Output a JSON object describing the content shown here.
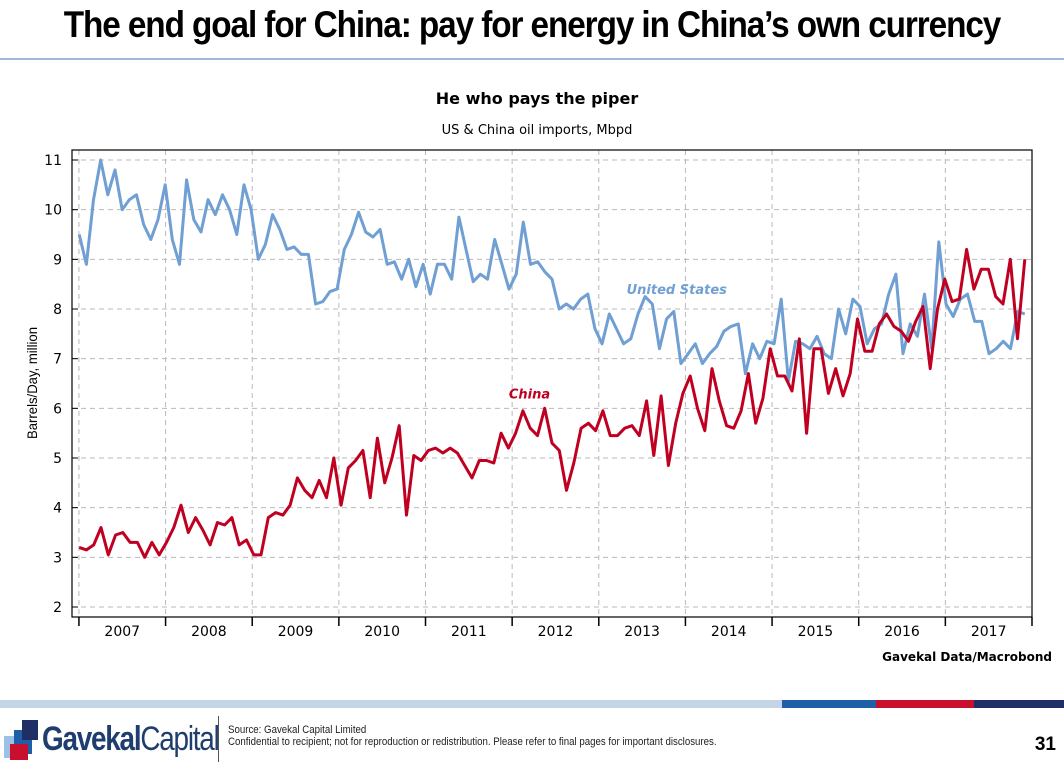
{
  "slide_title": "The end goal for China: pay for energy in China’s own currency",
  "chart_data": {
    "type": "line",
    "title": "He who pays the piper",
    "subtitle": "US & China oil imports, Mbpd",
    "ylabel": "Barrels/Day, million",
    "xlabel": "",
    "ylim": [
      2,
      11
    ],
    "yticks": [
      "2",
      "3",
      "4",
      "5",
      "6",
      "7",
      "8",
      "9",
      "10",
      "11"
    ],
    "x_start_year": 2006.92,
    "x_end_year": 2018.0,
    "year_labels": [
      "2007",
      "2008",
      "2009",
      "2010",
      "2011",
      "2012",
      "2013",
      "2014",
      "2015",
      "2016",
      "2017"
    ],
    "grid": true,
    "source_note": "Gavekal Data/Macrobond",
    "series": [
      {
        "name": "United States",
        "color": "#6f9fd3",
        "values": [
          9.5,
          8.9,
          10.2,
          11.0,
          10.3,
          10.8,
          10.0,
          10.2,
          10.3,
          9.7,
          9.4,
          9.8,
          10.5,
          9.4,
          8.9,
          10.6,
          9.8,
          9.55,
          10.2,
          9.9,
          10.3,
          10.0,
          9.5,
          10.5,
          10.0,
          9.0,
          9.3,
          9.9,
          9.6,
          9.2,
          9.25,
          9.1,
          9.1,
          8.1,
          8.15,
          8.35,
          8.4,
          9.2,
          9.5,
          9.95,
          9.55,
          9.45,
          9.6,
          8.9,
          8.95,
          8.6,
          9.0,
          8.45,
          8.9,
          8.3,
          8.9,
          8.9,
          8.6,
          9.85,
          9.2,
          8.55,
          8.7,
          8.6,
          9.4,
          8.9,
          8.4,
          8.7,
          9.75,
          8.9,
          8.95,
          8.75,
          8.6,
          8.0,
          8.1,
          8.0,
          8.2,
          8.3,
          7.6,
          7.3,
          7.9,
          7.6,
          7.3,
          7.4,
          7.9,
          8.25,
          8.1,
          7.2,
          7.8,
          7.95,
          6.9,
          7.1,
          7.3,
          6.9,
          7.1,
          7.25,
          7.55,
          7.65,
          7.7,
          6.7,
          7.3,
          7.0,
          7.35,
          7.3,
          8.2,
          6.55,
          7.35,
          7.3,
          7.2,
          7.45,
          7.1,
          7.0,
          8.0,
          7.5,
          8.2,
          8.05,
          7.3,
          7.6,
          7.7,
          8.3,
          8.7,
          7.1,
          7.7,
          7.45,
          8.3,
          7.2,
          9.35,
          8.1,
          7.85,
          8.2,
          8.3,
          7.75,
          7.75,
          7.1,
          7.2,
          7.35,
          7.2,
          7.95,
          7.9
        ]
      },
      {
        "name": "China",
        "color": "#c00020",
        "values": [
          3.2,
          3.15,
          3.25,
          3.6,
          3.05,
          3.45,
          3.5,
          3.3,
          3.3,
          3.0,
          3.3,
          3.05,
          3.3,
          3.6,
          4.05,
          3.5,
          3.8,
          3.55,
          3.25,
          3.7,
          3.65,
          3.8,
          3.25,
          3.35,
          3.05,
          3.05,
          3.8,
          3.9,
          3.85,
          4.05,
          4.6,
          4.35,
          4.2,
          4.55,
          4.2,
          5.0,
          4.05,
          4.8,
          4.95,
          5.15,
          4.2,
          5.4,
          4.5,
          5.0,
          5.65,
          3.85,
          5.05,
          4.95,
          5.15,
          5.2,
          5.1,
          5.2,
          5.1,
          4.85,
          4.6,
          4.95,
          4.95,
          4.9,
          5.5,
          5.2,
          5.5,
          5.95,
          5.6,
          5.45,
          6.0,
          5.3,
          5.15,
          4.35,
          4.9,
          5.6,
          5.7,
          5.55,
          5.95,
          5.45,
          5.45,
          5.6,
          5.65,
          5.45,
          6.15,
          5.05,
          6.25,
          4.85,
          5.7,
          6.3,
          6.65,
          6.0,
          5.55,
          6.8,
          6.15,
          5.65,
          5.6,
          5.95,
          6.7,
          5.7,
          6.2,
          7.2,
          6.65,
          6.65,
          6.35,
          7.4,
          5.5,
          7.2,
          7.2,
          6.3,
          6.8,
          6.25,
          6.7,
          7.8,
          7.15,
          7.15,
          7.7,
          7.9,
          7.65,
          7.55,
          7.35,
          7.75,
          8.05,
          6.8,
          8.0,
          8.6,
          8.15,
          8.2,
          9.2,
          8.4,
          8.8,
          8.8,
          8.25,
          8.1,
          9.0,
          7.4,
          9.0
        ]
      }
    ],
    "annotations": [
      {
        "text": "United States",
        "color": "#6f9fd3",
        "x": 2013.9,
        "y": 8.3
      },
      {
        "text": "China",
        "color": "#c00020",
        "x": 2012.2,
        "y": 6.2
      }
    ]
  },
  "footer": {
    "logo_bold": "Gavekal",
    "logo_regular": "Capital",
    "source_line": "Source: Gavekal Capital Limited",
    "disclaimer_line": "Confidential to recipient; not for reproduction or redistribution. Please refer to final pages for important disclosures.",
    "page_number": "31"
  }
}
